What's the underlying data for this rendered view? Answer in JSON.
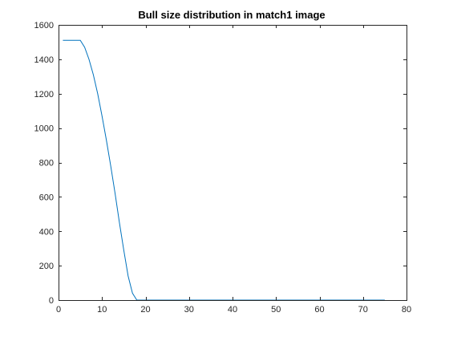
{
  "chart_data": {
    "type": "line",
    "title": "Bull size distribution in match1 image",
    "xlabel": "",
    "ylabel": "",
    "xlim": [
      0,
      80
    ],
    "ylim": [
      0,
      1600
    ],
    "xticks": [
      0,
      10,
      20,
      30,
      40,
      50,
      60,
      70,
      80
    ],
    "yticks": [
      0,
      200,
      400,
      600,
      800,
      1000,
      1200,
      1400,
      1600
    ],
    "grid": false,
    "series": [
      {
        "color": "#0072bd",
        "x": [
          1,
          2,
          3,
          4,
          5,
          6,
          7,
          8,
          9,
          10,
          11,
          12,
          13,
          14,
          15,
          16,
          17,
          18,
          19,
          20,
          25,
          30,
          35,
          40,
          45,
          50,
          55,
          60,
          65,
          70,
          75
        ],
        "y": [
          1510,
          1510,
          1510,
          1510,
          1510,
          1470,
          1400,
          1310,
          1200,
          1070,
          930,
          780,
          620,
          450,
          290,
          140,
          40,
          0,
          0,
          0,
          0,
          0,
          0,
          0,
          0,
          0,
          0,
          0,
          0,
          0,
          0
        ]
      }
    ]
  }
}
